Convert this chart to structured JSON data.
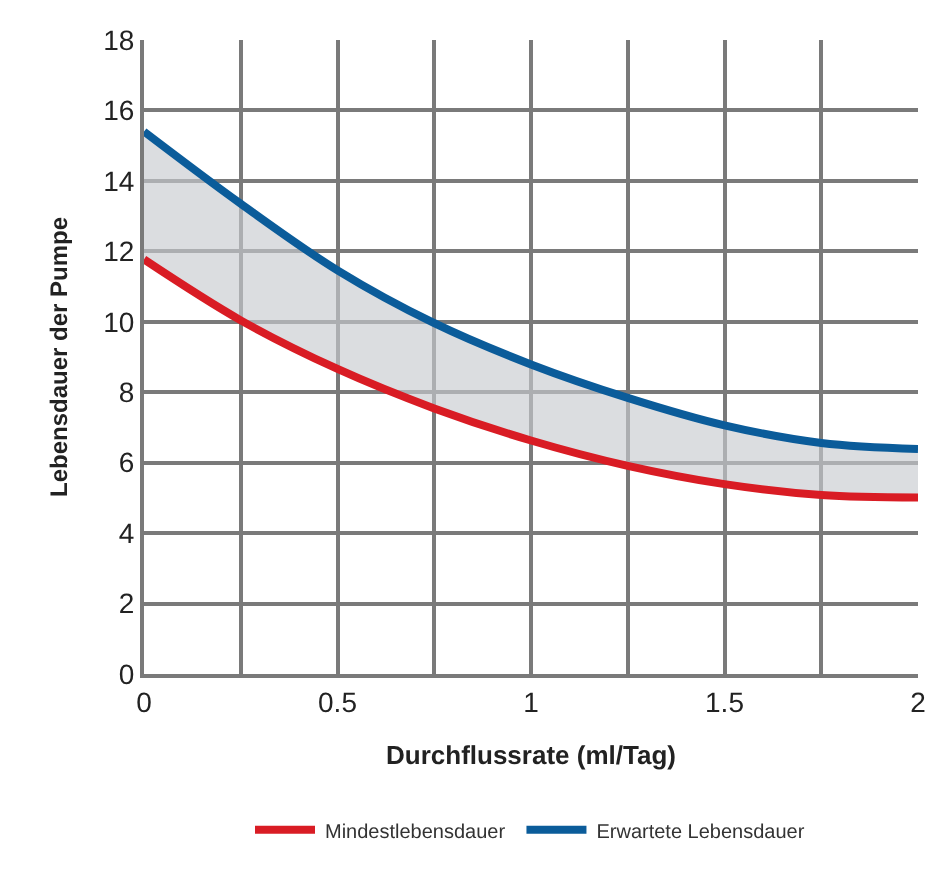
{
  "chart_data": {
    "type": "line",
    "xlabel": "Durchflussrate (ml/Tag)",
    "ylabel": "Lebensdauer der Pumpe",
    "x": [
      0,
      0.25,
      0.5,
      0.75,
      1,
      1.25,
      1.5,
      1.75,
      2
    ],
    "series": [
      {
        "name": "Erwartete Lebensdauer",
        "color": "#0b5c9a",
        "values": [
          15.4,
          13.35,
          11.46,
          9.96,
          8.79,
          7.84,
          7.06,
          6.56,
          6.39
        ],
        "lower": [
          11.77,
          10.04,
          8.66,
          7.54,
          6.63,
          5.91,
          5.39,
          5.08,
          5.01
        ],
        "upper": [
          15.4,
          13.35,
          11.46,
          9.96,
          8.79,
          7.84,
          7.06,
          6.56,
          6.39
        ]
      },
      {
        "name": "Mindestlebensdauer",
        "color": "#d91c24",
        "values": [
          11.77,
          10.04,
          8.66,
          7.54,
          6.63,
          5.91,
          5.39,
          5.08,
          5.01
        ]
      }
    ],
    "xlim": [
      0,
      2
    ],
    "xticks": [
      0,
      {
        "value": 0.25,
        "label": null
      },
      0.5,
      {
        "value": 0.75,
        "label": null
      },
      1,
      {
        "value": 1.25,
        "label": null
      },
      1.5,
      {
        "value": 1.75,
        "label": null
      },
      2
    ],
    "ylim": [
      0,
      18
    ],
    "yticks": [
      0,
      2,
      4,
      6,
      8,
      10,
      12,
      14,
      16,
      18
    ],
    "grid": true,
    "legend": "bottom",
    "marker": "none",
    "line_style": "solid"
  }
}
